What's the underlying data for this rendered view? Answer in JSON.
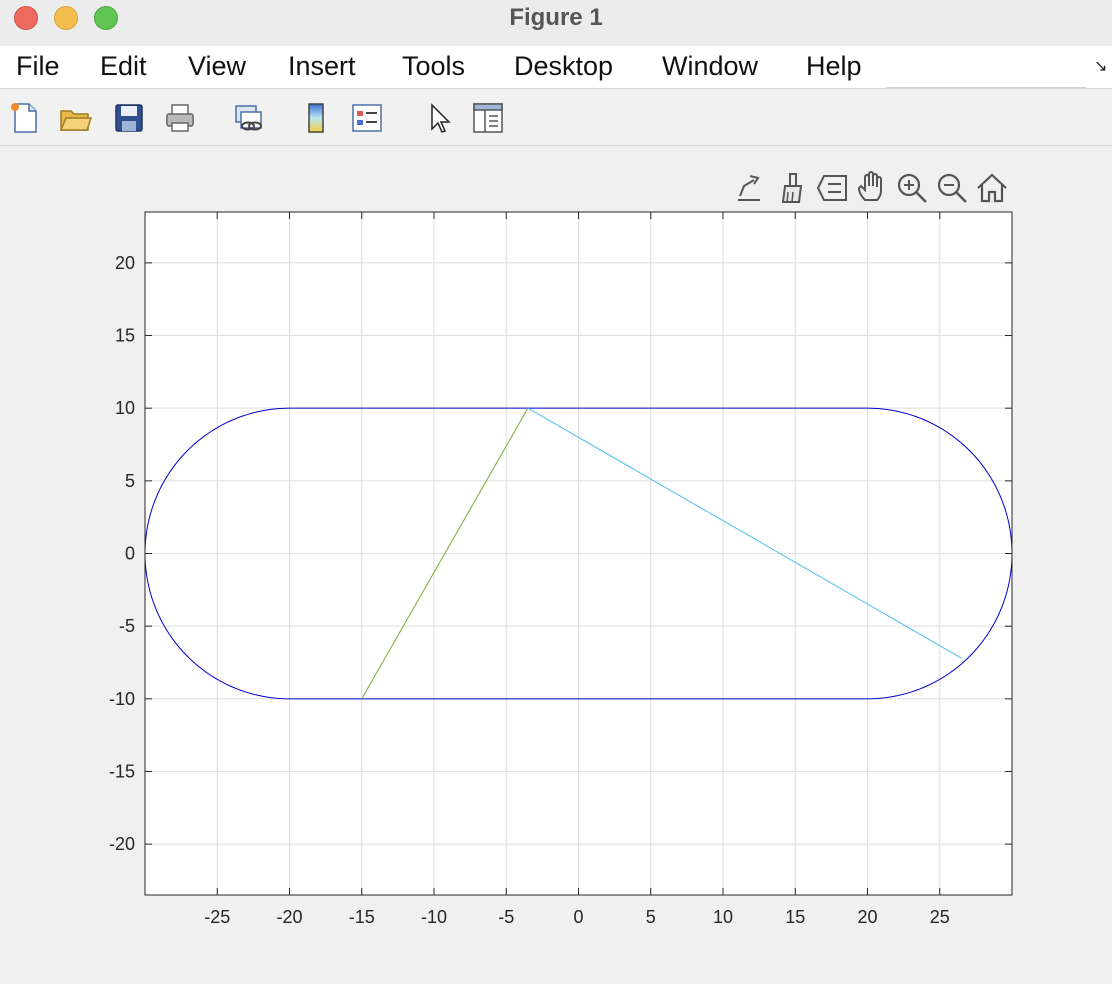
{
  "window": {
    "title": "Figure 1"
  },
  "menu": {
    "items": [
      "File",
      "Edit",
      "View",
      "Insert",
      "Tools",
      "Desktop",
      "Window",
      "Help"
    ]
  },
  "toolbar": {
    "buttons": [
      "new-figure-icon",
      "open-file-icon",
      "save-icon",
      "print-icon",
      "link-plot-icon",
      "colorbar-icon",
      "legend-icon",
      "pointer-icon",
      "property-inspector-icon"
    ]
  },
  "axes_toolbar": {
    "buttons": [
      "export-icon",
      "brush-icon",
      "data-tips-icon",
      "pan-icon",
      "zoom-in-icon",
      "zoom-out-icon",
      "home-icon"
    ]
  },
  "colors": {
    "track": "#0000cc",
    "green_line": "#77ac30",
    "cyan_line": "#4dbeee",
    "grid": "#dedede",
    "axis": "#262626"
  },
  "chart_data": {
    "type": "line",
    "title": "",
    "xlabel": "",
    "ylabel": "",
    "xlim": [
      -30,
      30
    ],
    "ylim": [
      -23.5,
      23.5
    ],
    "xticks": [
      -25,
      -20,
      -15,
      -10,
      -5,
      0,
      5,
      10,
      15,
      20,
      25
    ],
    "yticks": [
      -20,
      -15,
      -10,
      -5,
      0,
      5,
      10,
      15,
      20
    ],
    "grid": true,
    "series": [
      {
        "shape": "stadium",
        "color": "#0000cc",
        "straight_segments": [
          [
            [
              -20,
              10
            ],
            [
              20,
              10
            ]
          ],
          [
            [
              -20,
              -10
            ],
            [
              20,
              -10
            ]
          ]
        ],
        "arcs": [
          {
            "center": [
              20,
              0
            ],
            "radius": 10,
            "side": "right"
          },
          {
            "center": [
              -20,
              0
            ],
            "radius": 10,
            "side": "left"
          }
        ]
      },
      {
        "color": "#77ac30",
        "x": [
          -15,
          -3.5
        ],
        "y": [
          -10,
          10
        ]
      },
      {
        "color": "#4dbeee",
        "x": [
          -3.5,
          26.5
        ],
        "y": [
          10,
          -7.2
        ]
      }
    ]
  }
}
